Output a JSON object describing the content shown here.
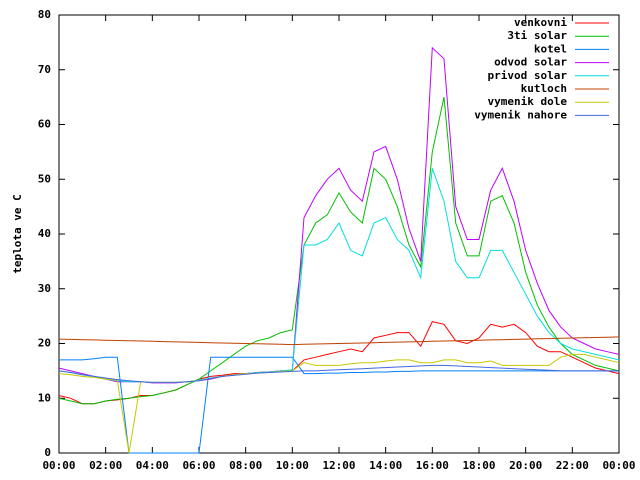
{
  "chart_data": {
    "type": "line",
    "y_label": "teplota ve C",
    "x": [
      0,
      0.5,
      1,
      1.5,
      2,
      2.5,
      3,
      3.5,
      4,
      4.5,
      5,
      5.5,
      6,
      6.5,
      7,
      7.5,
      8,
      8.5,
      9,
      9.5,
      10,
      10.5,
      11,
      11.5,
      12,
      12.5,
      13,
      13.5,
      14,
      14.5,
      15,
      15.5,
      16,
      16.5,
      17,
      17.5,
      18,
      18.5,
      19,
      19.5,
      20,
      20.5,
      21,
      21.5,
      22,
      22.5,
      23,
      23.5,
      24
    ],
    "xlim": [
      0,
      24
    ],
    "xticks": [
      {
        "value": 0,
        "label": "00:00"
      },
      {
        "value": 2,
        "label": "02:00"
      },
      {
        "value": 4,
        "label": "04:00"
      },
      {
        "value": 6,
        "label": "06:00"
      },
      {
        "value": 8,
        "label": "08:00"
      },
      {
        "value": 10,
        "label": "10:00"
      },
      {
        "value": 12,
        "label": "12:00"
      },
      {
        "value": 14,
        "label": "14:00"
      },
      {
        "value": 16,
        "label": "16:00"
      },
      {
        "value": 18,
        "label": "18:00"
      },
      {
        "value": 20,
        "label": "20:00"
      },
      {
        "value": 22,
        "label": "22:00"
      },
      {
        "value": 24,
        "label": "00:00"
      }
    ],
    "ylim": [
      0,
      80
    ],
    "yticks": [
      0,
      10,
      20,
      30,
      40,
      50,
      60,
      70,
      80
    ],
    "legend": "top-right",
    "series": [
      {
        "name": "venkovni",
        "color": "#ff0000",
        "values": [
          10.5,
          10,
          9,
          9,
          9.5,
          9.7,
          10,
          10.5,
          10.5,
          11,
          11.5,
          12.5,
          13.5,
          14,
          14.2,
          14.5,
          14.5,
          14.7,
          14.8,
          15,
          15,
          17,
          17.5,
          18,
          18.5,
          19,
          18.5,
          21,
          21.5,
          22,
          22,
          19.5,
          24,
          23.5,
          20.5,
          20,
          21,
          23.5,
          23,
          23.5,
          22,
          19.5,
          18.5,
          18.5,
          17.5,
          16.5,
          15.5,
          15,
          14.5
        ]
      },
      {
        "name": "3ti solar",
        "color": "#00c000",
        "values": [
          10,
          9.5,
          9,
          9,
          9.5,
          9.8,
          10,
          10.3,
          10.5,
          11,
          11.5,
          12.5,
          13.5,
          15,
          16.5,
          18,
          19.5,
          20.5,
          21,
          22,
          22.5,
          38,
          42,
          43.5,
          47.5,
          44,
          42,
          52,
          50,
          45,
          38,
          34,
          55,
          65,
          42,
          36,
          36,
          46,
          47,
          42,
          33,
          27,
          23,
          20,
          18,
          17,
          16,
          15.5,
          15
        ]
      },
      {
        "name": "kotel",
        "color": "#0080ff",
        "values": [
          17,
          17,
          17,
          17.2,
          17.5,
          17.5,
          0,
          0,
          0,
          0,
          0,
          0,
          0,
          17.5,
          17.5,
          17.5,
          17.5,
          17.5,
          17.5,
          17.5,
          17.5,
          14.5,
          14.5,
          14.6,
          14.6,
          14.7,
          14.7,
          14.8,
          14.8,
          14.9,
          14.9,
          15,
          15,
          15,
          15,
          15,
          15,
          15,
          15,
          15,
          15,
          15,
          15,
          15,
          15,
          15,
          15,
          15,
          15
        ]
      },
      {
        "name": "odvod solar",
        "color": "#c000ff",
        "values": [
          15.5,
          15,
          14.5,
          14,
          13.5,
          13,
          13,
          13,
          12.8,
          12.8,
          12.8,
          13,
          13.2,
          13.5,
          14,
          14.2,
          14.5,
          14.7,
          14.8,
          15,
          15,
          43,
          47,
          50,
          52,
          48,
          46,
          55,
          56,
          50,
          41,
          35,
          74,
          72,
          45,
          39,
          39,
          48,
          52,
          46,
          37,
          31,
          26,
          23,
          21,
          20,
          19,
          18.5,
          18
        ]
      },
      {
        "name": "privod solar",
        "color": "#00dede",
        "values": [
          15,
          14.7,
          14.3,
          14,
          13.5,
          13.2,
          13,
          13,
          12.9,
          12.9,
          12.9,
          13,
          13.3,
          13.7,
          14,
          14.3,
          14.5,
          14.7,
          14.8,
          15,
          15.2,
          38,
          38,
          39,
          42,
          37,
          36,
          42,
          43,
          39,
          37,
          32,
          52,
          46,
          35,
          32,
          32,
          37,
          37,
          33,
          29,
          25,
          22,
          20,
          19,
          18.5,
          18,
          17.5,
          17
        ]
      },
      {
        "name": "kutloch",
        "color": "#c04000",
        "values": [
          20.8,
          20.75,
          20.7,
          20.65,
          20.6,
          20.55,
          20.5,
          20.45,
          20.4,
          20.35,
          20.3,
          20.25,
          20.2,
          20.15,
          20.1,
          20.05,
          20,
          19.95,
          19.9,
          19.85,
          19.8,
          19.85,
          19.9,
          19.95,
          20,
          20.05,
          20.1,
          20.15,
          20.2,
          20.25,
          20.3,
          20.35,
          20.4,
          20.45,
          20.5,
          20.55,
          20.6,
          20.65,
          20.7,
          20.75,
          20.8,
          20.85,
          20.9,
          20.95,
          21,
          21.05,
          21.1,
          21.15,
          21.2
        ]
      },
      {
        "name": "vymenik dole",
        "color": "#c8c800",
        "values": [
          14.5,
          14.3,
          14,
          13.8,
          13.5,
          13.3,
          0,
          13,
          12.9,
          12.9,
          12.9,
          13,
          13.2,
          13.6,
          14,
          14.3,
          14.5,
          14.6,
          14.7,
          14.9,
          15,
          16.5,
          16,
          16,
          16,
          16.3,
          16.5,
          16.5,
          16.8,
          17,
          17,
          16.5,
          16.5,
          17,
          17,
          16.5,
          16.5,
          16.8,
          16,
          16,
          16,
          16,
          16,
          17.5,
          18,
          18,
          17.5,
          17,
          16.5
        ]
      },
      {
        "name": "vymenik nahore",
        "color": "#4169e1",
        "values": [
          15,
          14.7,
          14.3,
          14,
          13.7,
          13.4,
          13.2,
          13,
          12.9,
          12.9,
          12.9,
          13,
          13.2,
          13.6,
          14,
          14.2,
          14.4,
          14.6,
          14.7,
          14.8,
          14.9,
          15,
          15,
          15.1,
          15.2,
          15.3,
          15.4,
          15.5,
          15.6,
          15.7,
          15.8,
          15.9,
          16,
          16,
          15.9,
          15.8,
          15.7,
          15.6,
          15.5,
          15.4,
          15.3,
          15.2,
          15.1,
          15,
          15,
          15,
          15,
          15,
          15
        ]
      }
    ]
  }
}
